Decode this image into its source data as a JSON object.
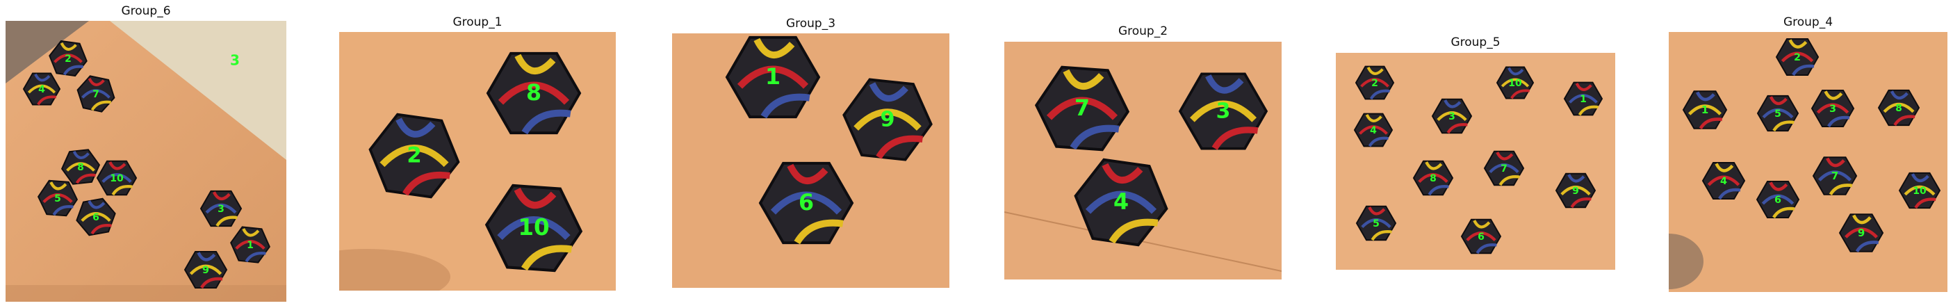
{
  "colors": {
    "background": "#ffffff",
    "label": "#2bff2b",
    "tile_fill": "#26242a",
    "tile_edge": "#0e0d10",
    "track_red": "#c8232b",
    "track_yellow": "#e2bc21",
    "track_blue": "#3c52a3",
    "table_tan": "#e8a873"
  },
  "panels": [
    {
      "title": "Group_6",
      "tiles": [
        {
          "label": "2"
        },
        {
          "label": "4"
        },
        {
          "label": "7"
        },
        {
          "label": "3"
        },
        {
          "label": "8"
        },
        {
          "label": "10"
        },
        {
          "label": "5"
        },
        {
          "label": "6"
        },
        {
          "label": "3"
        },
        {
          "label": "1"
        },
        {
          "label": "9"
        }
      ]
    },
    {
      "title": "Group_1",
      "tiles": [
        {
          "label": "8"
        },
        {
          "label": "2"
        },
        {
          "label": "10"
        }
      ]
    },
    {
      "title": "Group_3",
      "tiles": [
        {
          "label": "1"
        },
        {
          "label": "9"
        },
        {
          "label": "6"
        }
      ]
    },
    {
      "title": "Group_2",
      "tiles": [
        {
          "label": "7"
        },
        {
          "label": "3"
        },
        {
          "label": "4"
        }
      ]
    },
    {
      "title": "Group_5",
      "tiles": [
        {
          "label": "2"
        },
        {
          "label": "10"
        },
        {
          "label": "1"
        },
        {
          "label": "4"
        },
        {
          "label": "3"
        },
        {
          "label": "7"
        },
        {
          "label": "8"
        },
        {
          "label": "9"
        },
        {
          "label": "5"
        },
        {
          "label": "6"
        }
      ]
    },
    {
      "title": "Group_4",
      "tiles": [
        {
          "label": "2"
        },
        {
          "label": "1"
        },
        {
          "label": "5"
        },
        {
          "label": "3"
        },
        {
          "label": "8"
        },
        {
          "label": "7"
        },
        {
          "label": "4"
        },
        {
          "label": "10"
        },
        {
          "label": "6"
        },
        {
          "label": "9"
        }
      ]
    }
  ]
}
